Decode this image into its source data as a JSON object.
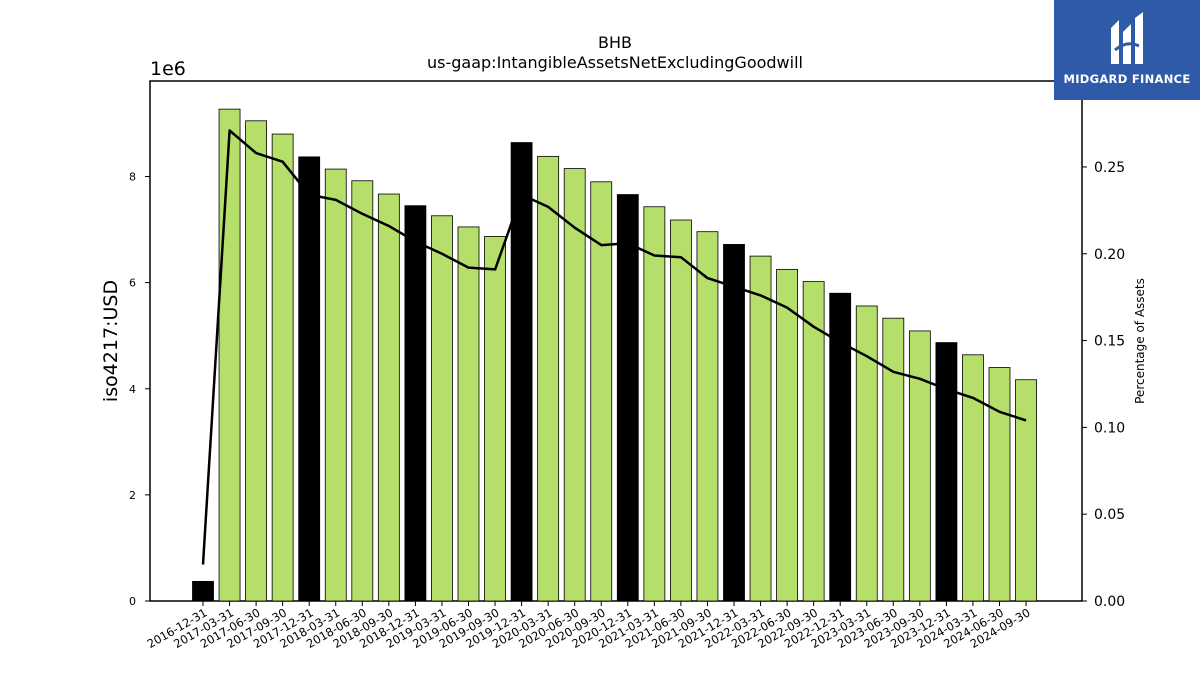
{
  "chart_data": {
    "type": "bar",
    "title": "BHB",
    "subtitle": "us-gaap:IntangibleAssetsNetExcludingGoodwill",
    "ylabel": "iso4217:USD",
    "y_offset_label": "1e6",
    "y2label": "Percentage of Assets",
    "ylim": [
      0,
      9800000
    ],
    "y2lim": [
      0,
      0.2995
    ],
    "yticks": [
      0,
      2000000,
      4000000,
      6000000,
      8000000
    ],
    "ytick_labels": [
      "0",
      "2",
      "4",
      "6",
      "8"
    ],
    "y2ticks": [
      0.0,
      0.05,
      0.1,
      0.15,
      0.2,
      0.25
    ],
    "y2tick_labels": [
      "0.00",
      "0.05",
      "0.10",
      "0.15",
      "0.20",
      "0.25"
    ],
    "categories": [
      "2016-12-31",
      "2017-03-31",
      "2017-06-30",
      "2017-09-30",
      "2017-12-31",
      "2018-03-31",
      "2018-06-30",
      "2018-09-30",
      "2018-12-31",
      "2019-03-31",
      "2019-06-30",
      "2019-09-30",
      "2019-12-31",
      "2020-03-31",
      "2020-06-30",
      "2020-09-30",
      "2020-12-31",
      "2021-03-31",
      "2021-06-30",
      "2021-09-30",
      "2021-12-31",
      "2022-03-31",
      "2022-06-30",
      "2022-09-30",
      "2022-12-31",
      "2023-03-31",
      "2023-06-30",
      "2023-09-30",
      "2023-12-31",
      "2024-03-31",
      "2024-06-30",
      "2024-09-30"
    ],
    "series": [
      {
        "type": "bar",
        "values": [
          370000,
          9270000,
          9050000,
          8800000,
          8370000,
          8140000,
          7920000,
          7670000,
          7450000,
          7260000,
          7050000,
          6870000,
          8640000,
          8380000,
          8150000,
          7900000,
          7660000,
          7430000,
          7180000,
          6960000,
          6720000,
          6500000,
          6250000,
          6020000,
          5800000,
          5560000,
          5330000,
          5090000,
          4870000,
          4640000,
          4400000,
          4170000
        ],
        "fill": "#b5de6b",
        "highlight_fill": "#000000",
        "highlight_rule": "fiscal year-end (12-31)"
      },
      {
        "type": "line",
        "axis": "right",
        "values": [
          0.021,
          0.271,
          0.258,
          0.253,
          0.234,
          0.231,
          0.223,
          0.216,
          0.207,
          0.2,
          0.192,
          0.191,
          0.234,
          0.227,
          0.215,
          0.205,
          0.206,
          0.199,
          0.198,
          0.186,
          0.181,
          0.176,
          0.169,
          0.158,
          0.149,
          0.141,
          0.132,
          0.128,
          0.122,
          0.117,
          0.109,
          0.104
        ],
        "color": "#000000"
      }
    ],
    "grid": false
  },
  "logo": {
    "text": "MIDGARD FINANCE",
    "color": "#2f5aa8"
  }
}
